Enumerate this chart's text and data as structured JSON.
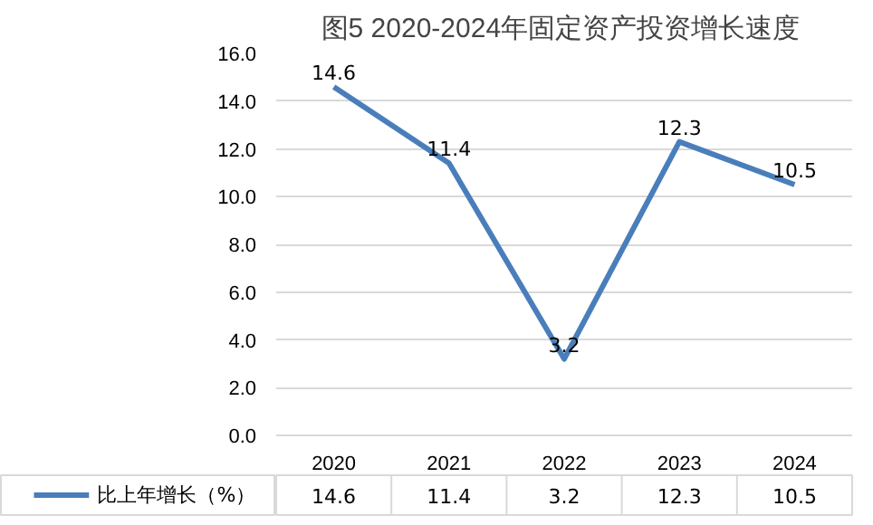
{
  "chart_data": {
    "type": "line",
    "title": "图5  2020-2024年固定资产投资增长速度",
    "categories": [
      "2020",
      "2021",
      "2022",
      "2023",
      "2024"
    ],
    "series": [
      {
        "name": "比上年增长（%）",
        "color": "#4a7ebb",
        "values": [
          14.6,
          11.4,
          3.2,
          12.3,
          10.5
        ],
        "value_labels": [
          "14.6",
          "11.4",
          "3.2",
          "12.3",
          "10.5"
        ]
      }
    ],
    "ylim": [
      0,
      16
    ],
    "yticks": [
      {
        "value": 0,
        "label": "0.0"
      },
      {
        "value": 2,
        "label": "2.0"
      },
      {
        "value": 4,
        "label": "4.0"
      },
      {
        "value": 6,
        "label": "6.0"
      },
      {
        "value": 8,
        "label": "8.0"
      },
      {
        "value": 10,
        "label": "10.0"
      },
      {
        "value": 12,
        "label": "12.0"
      },
      {
        "value": 14,
        "label": "14.0"
      },
      {
        "value": 16,
        "label": "16.0"
      }
    ],
    "annotations": [
      "14.6",
      "11.4",
      "3.2",
      "12.3",
      "10.5"
    ],
    "grid": "y",
    "legend": "bottom",
    "marker": "none",
    "line_style": "solid"
  }
}
